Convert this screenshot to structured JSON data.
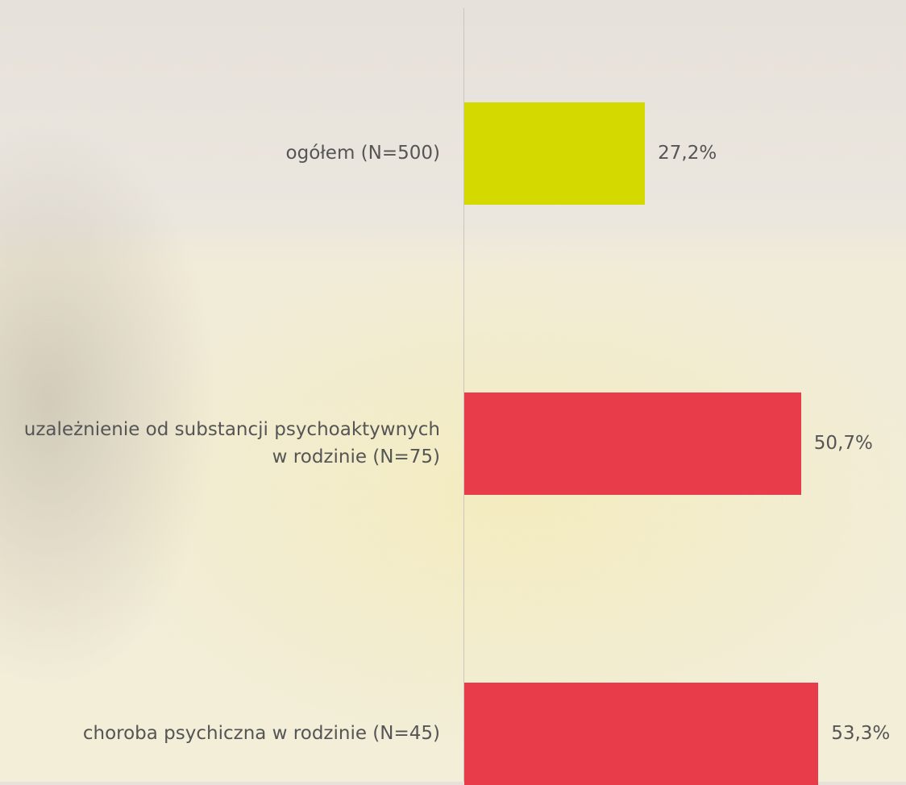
{
  "chart_data": {
    "type": "bar",
    "orientation": "horizontal",
    "categories": [
      "ogółem (N=500)",
      "uzależnienie od substancji psychoaktywnych w rodzinie (N=75)",
      "choroba psychiczna w rodzinie (N=45)"
    ],
    "values": [
      27.2,
      50.7,
      53.3
    ],
    "value_labels": [
      "27,2%",
      "50,7%",
      "53,3%"
    ],
    "colors": [
      "#d4d900",
      "#e83c4b",
      "#e83c4b"
    ],
    "xlim": [
      0,
      66.5
    ]
  }
}
